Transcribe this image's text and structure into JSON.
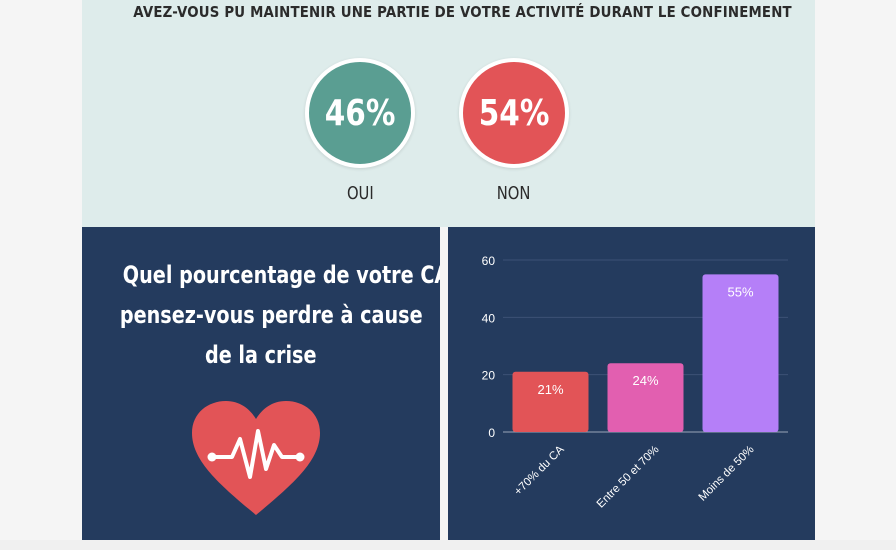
{
  "survey": {
    "question": "AVEZ-VOUS PU MAINTENIR UNE PARTIE DE VOTRE ACTIVITÉ DURANT LE CONFINEMENT",
    "yes": {
      "value": "46%",
      "label": "OUI",
      "color": "#5a9e92"
    },
    "no": {
      "value": "54%",
      "label": "NON",
      "color": "#e25457"
    }
  },
  "loss_question": {
    "lines": [
      "Quel pourcentage de votre CA",
      "pensez-vous perdre à cause",
      "de la crise"
    ]
  },
  "icons": {
    "heart": "heart-pulse-icon"
  },
  "colors": {
    "panel": "#243b5e",
    "top_panel": "#deeceb",
    "heart": "#e25457"
  },
  "chart_data": {
    "type": "bar",
    "categories": [
      "+70% du CA",
      "Entre 50 et 70%",
      "Moins de 50%"
    ],
    "values": [
      21,
      24,
      55
    ],
    "data_labels": [
      "21%",
      "24%",
      "55%"
    ],
    "colors": [
      "#e25457",
      "#e25fb0",
      "#b57ff8"
    ],
    "ylim": [
      0,
      60
    ],
    "yticks": [
      0,
      20,
      40,
      60
    ],
    "grid": true,
    "title": "",
    "xlabel": "",
    "ylabel": ""
  }
}
